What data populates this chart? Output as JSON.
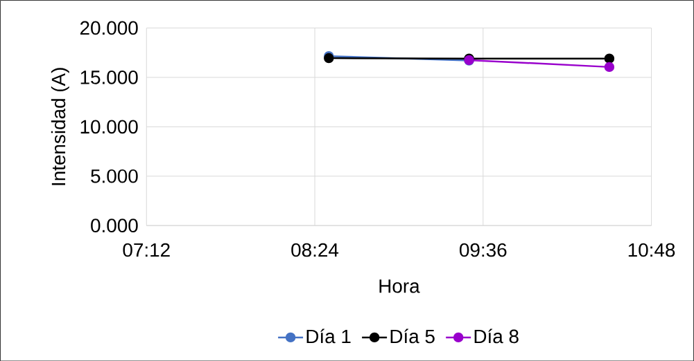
{
  "chart_data": {
    "type": "line",
    "xlabel": "Hora",
    "ylabel": "Intensidad (A)",
    "x": [
      8.5,
      9.5,
      10.5
    ],
    "series": [
      {
        "name": "Día 1",
        "color": "#4472c4",
        "values": [
          17.15,
          16.7,
          null
        ]
      },
      {
        "name": "Día 5",
        "color": "#000000",
        "values": [
          16.95,
          16.9,
          16.9
        ]
      },
      {
        "name": "Día 8",
        "color": "#9900cc",
        "values": [
          null,
          16.75,
          16.05
        ]
      }
    ],
    "xlim": [
      7.2,
      10.8
    ],
    "xticks": [
      {
        "value": 7.2,
        "label": "07:12"
      },
      {
        "value": 8.4,
        "label": "08:24"
      },
      {
        "value": 9.6,
        "label": "09:36"
      },
      {
        "value": 10.8,
        "label": "10:48"
      }
    ],
    "ylim": [
      0,
      20
    ],
    "yticks": [
      {
        "value": 0,
        "label": "0.000"
      },
      {
        "value": 5,
        "label": "5.000"
      },
      {
        "value": 10,
        "label": "10.000"
      },
      {
        "value": 15,
        "label": "15.000"
      },
      {
        "value": 20,
        "label": "20.000"
      }
    ],
    "grid": true,
    "legend": "bottom",
    "marker": "circle",
    "line_style": "solid"
  }
}
